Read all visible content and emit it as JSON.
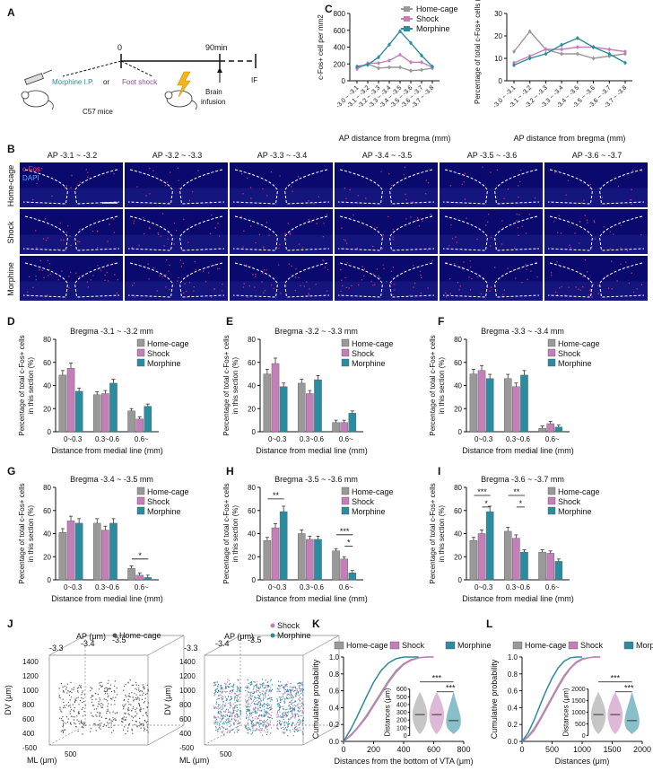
{
  "panel_letters": [
    "A",
    "B",
    "C",
    "D",
    "E",
    "F",
    "G",
    "H",
    "I",
    "J",
    "K",
    "L"
  ],
  "panelA": {
    "t0": "0",
    "t90": "90min",
    "morphine": "Morphine I.P.",
    "or": "or",
    "footshock": "Foot shock",
    "mice": "C57 mice",
    "brain1": "Brain",
    "brain2": "infusion",
    "if": "IF"
  },
  "colors": {
    "home": "#999999",
    "shock": "#c47fb8",
    "morphine": "#2a8c9e"
  },
  "groups": [
    "Home-cage",
    "Shock",
    "Morphine"
  ],
  "panelB": {
    "sections": [
      "AP -3.1 ~ -3.2",
      "AP -3.2 ~ -3.3",
      "AP -3.3 ~ -3.4",
      "AP -3.4 ~ -3.5",
      "AP -3.5 ~ -3.6",
      "AP -3.6 ~ -3.7"
    ],
    "rows": [
      "Home-cage",
      "Shock",
      "Morphine"
    ],
    "stain1": "c-Fos",
    "stain2": "DAPI"
  },
  "chart_data": [
    {
      "id": "C1",
      "type": "line",
      "ylabel": "c-Fos+ cell per mm2",
      "xlabel": "AP distance from bregma (mm)",
      "yticks": [
        "0",
        "200",
        "400",
        "600",
        "800"
      ],
      "ylim": [
        0,
        800
      ],
      "categories": [
        "-3.0 ~ -3.1",
        "-3.1 ~ -3.2",
        "-3.2 ~ -3.3",
        "-3.3 ~ -3.4",
        "-3.4 ~ -3.5",
        "-3.5 ~ -3.6",
        "-3.6 ~ -3.7",
        "-3.7 ~ -3.8"
      ],
      "series": [
        {
          "name": "Home-cage",
          "values": [
            150,
            200,
            150,
            160,
            160,
            120,
            130,
            150
          ]
        },
        {
          "name": "Shock",
          "values": [
            140,
            210,
            210,
            240,
            310,
            220,
            220,
            160
          ]
        },
        {
          "name": "Morphine",
          "values": [
            170,
            190,
            280,
            430,
            590,
            450,
            300,
            170
          ]
        }
      ]
    },
    {
      "id": "C2",
      "type": "line",
      "ylabel": "Percentage of total c-Fos+ cells (%)",
      "xlabel": "AP distance from bregma (mm)",
      "yticks": [
        "0",
        "10",
        "20",
        "30"
      ],
      "ylim": [
        0,
        30
      ],
      "categories": [
        "-3.0 ~ -3.1",
        "-3.1 ~ -3.2",
        "-3.2 ~ -3.3",
        "-3.3 ~ -3.4",
        "-3.4 ~ -3.5",
        "-3.5 ~ -3.6",
        "-3.6 ~ -3.7",
        "-3.7 ~ -3.8"
      ],
      "series": [
        {
          "name": "Home-cage",
          "values": [
            13,
            22,
            14,
            12,
            12,
            10,
            11,
            12
          ]
        },
        {
          "name": "Shock",
          "values": [
            8,
            11,
            14,
            14,
            15,
            15,
            14,
            13
          ]
        },
        {
          "name": "Morphine",
          "values": [
            7,
            10,
            12,
            16,
            19,
            15,
            12,
            8
          ]
        }
      ]
    },
    {
      "id": "D",
      "type": "bar",
      "title": "Bregma -3.1 ~ -3.2 mm",
      "ylim": [
        0,
        80
      ],
      "yticks": [
        "0",
        "20",
        "40",
        "60",
        "80"
      ],
      "ylabel": "Percentage of total c-Fos+ cells in this section (%)",
      "xlabel": "Distance from medial line (mm)",
      "categories": [
        "0~0.3",
        "0.3~0.6",
        "0.6~"
      ],
      "series": [
        {
          "name": "Home-cage",
          "values": [
            49,
            32,
            18
          ]
        },
        {
          "name": "Shock",
          "values": [
            55,
            33,
            11
          ]
        },
        {
          "name": "Morphine",
          "values": [
            35,
            42,
            22
          ]
        }
      ],
      "sig": []
    },
    {
      "id": "E",
      "type": "bar",
      "title": "Bregma -3.2 ~ -3.3 mm",
      "ylim": [
        0,
        80
      ],
      "yticks": [
        "0",
        "20",
        "40",
        "60",
        "80"
      ],
      "ylabel": "Percentage of total c-Fos+ cells in this section (%)",
      "xlabel": "Distance from medial line (mm)",
      "categories": [
        "0~0.3",
        "0.3~0.6",
        "0.6~"
      ],
      "series": [
        {
          "name": "Home-cage",
          "values": [
            50,
            42,
            8
          ]
        },
        {
          "name": "Shock",
          "values": [
            59,
            33,
            8
          ]
        },
        {
          "name": "Morphine",
          "values": [
            39,
            45,
            16
          ]
        }
      ],
      "sig": []
    },
    {
      "id": "F",
      "type": "bar",
      "title": "Bregma -3.3 ~ -3.4 mm",
      "ylim": [
        0,
        80
      ],
      "yticks": [
        "0",
        "20",
        "40",
        "60",
        "80"
      ],
      "ylabel": "Percentage of total c-Fos+ cells in this section (%)",
      "xlabel": "Distance from medial line (mm)",
      "categories": [
        "0~0.3",
        "0.3~0.6",
        "0.6~"
      ],
      "series": [
        {
          "name": "Home-cage",
          "values": [
            50,
            46,
            3
          ]
        },
        {
          "name": "Shock",
          "values": [
            53,
            39,
            7
          ]
        },
        {
          "name": "Morphine",
          "values": [
            46,
            49,
            4
          ]
        }
      ],
      "sig": []
    },
    {
      "id": "G",
      "type": "bar",
      "title": "Bregma -3.4 ~ -3.5 mm",
      "ylim": [
        0,
        80
      ],
      "yticks": [
        "0",
        "20",
        "40",
        "60",
        "80"
      ],
      "ylabel": "Percentage of total c-Fos+ cells in this section (%)",
      "xlabel": "Distance from medial line (mm)",
      "categories": [
        "0~0.3",
        "0.3~0.6",
        "0.6~"
      ],
      "series": [
        {
          "name": "Home-cage",
          "values": [
            41,
            49,
            10
          ]
        },
        {
          "name": "Shock",
          "values": [
            51,
            43,
            4
          ]
        },
        {
          "name": "Morphine",
          "values": [
            49,
            49,
            2
          ]
        }
      ],
      "sig": [
        {
          "cat": 2,
          "a": 0,
          "b": 2,
          "label": "*",
          "y": 18
        }
      ]
    },
    {
      "id": "H",
      "type": "bar",
      "title": "Bregma -3.5 ~ -3.6 mm",
      "ylim": [
        0,
        80
      ],
      "yticks": [
        "0",
        "20",
        "40",
        "60",
        "80"
      ],
      "ylabel": "Percentage of total c-Fos+ cells in this section (%)",
      "xlabel": "Distance from medial line (mm)",
      "categories": [
        "0~0.3",
        "0.3~0.6",
        "0.6~"
      ],
      "series": [
        {
          "name": "Home-cage",
          "values": [
            34,
            40,
            25
          ]
        },
        {
          "name": "Shock",
          "values": [
            45,
            35,
            18
          ]
        },
        {
          "name": "Morphine",
          "values": [
            59,
            35,
            6
          ]
        }
      ],
      "sig": [
        {
          "cat": 0,
          "a": 0,
          "b": 2,
          "label": "**",
          "y": 70
        },
        {
          "cat": 2,
          "a": 0,
          "b": 2,
          "label": "***",
          "y": 39
        },
        {
          "cat": 2,
          "a": 1,
          "b": 2,
          "label": "*",
          "y": 29
        }
      ]
    },
    {
      "id": "I",
      "type": "bar",
      "title": "Bregma -3.6 ~ -3.7 mm",
      "ylim": [
        0,
        80
      ],
      "yticks": [
        "0",
        "20",
        "40",
        "60",
        "80"
      ],
      "ylabel": "Percentage of total c-Fos+ cells in this section (%)",
      "xlabel": "Distance from medial line (mm)",
      "categories": [
        "0~0.3",
        "0.3~0.6",
        "0.6~"
      ],
      "series": [
        {
          "name": "Home-cage",
          "values": [
            34,
            42,
            24
          ]
        },
        {
          "name": "Shock",
          "values": [
            40,
            36,
            23
          ]
        },
        {
          "name": "Morphine",
          "values": [
            59,
            24,
            16
          ]
        }
      ],
      "sig": [
        {
          "cat": 0,
          "a": 0,
          "b": 2,
          "label": "***",
          "y": 73
        },
        {
          "cat": 0,
          "a": 1,
          "b": 2,
          "label": "*",
          "y": 63
        },
        {
          "cat": 1,
          "a": 0,
          "b": 2,
          "label": "**",
          "y": 73
        },
        {
          "cat": 1,
          "a": 1,
          "b": 2,
          "label": "*",
          "y": 63
        }
      ]
    },
    {
      "id": "K",
      "type": "line",
      "xlabel": "Distances from the bottom of VTA (μm)",
      "ylabel": "Cumulative probability",
      "xticks": [
        "0",
        "200",
        "400",
        "600",
        "800"
      ],
      "yticks": [
        "0.0",
        "0.2",
        "0.4",
        "0.6",
        "0.8",
        "1.0"
      ],
      "xlim": [
        0,
        800
      ],
      "ylim": [
        0,
        1
      ],
      "series": [
        {
          "name": "Home-cage",
          "x": [
            0,
            50,
            100,
            150,
            200,
            250,
            300,
            350,
            400,
            450,
            500,
            550,
            600
          ],
          "y": [
            0,
            0.08,
            0.18,
            0.3,
            0.44,
            0.58,
            0.72,
            0.84,
            0.92,
            0.97,
            0.99,
            1,
            1
          ]
        },
        {
          "name": "Shock",
          "x": [
            0,
            50,
            100,
            150,
            200,
            250,
            300,
            350,
            400,
            450,
            500,
            550,
            600
          ],
          "y": [
            0,
            0.07,
            0.17,
            0.28,
            0.42,
            0.56,
            0.7,
            0.82,
            0.91,
            0.96,
            0.99,
            1,
            1
          ]
        },
        {
          "name": "Morphine",
          "x": [
            0,
            50,
            100,
            150,
            200,
            250,
            300,
            350,
            400,
            450,
            500
          ],
          "y": [
            0,
            0.15,
            0.33,
            0.52,
            0.7,
            0.84,
            0.93,
            0.98,
            1,
            1,
            1
          ]
        }
      ],
      "inset": {
        "ylabel": "Distances (μm)",
        "yticks": [
          "0",
          "100",
          "200",
          "300",
          "400",
          "500",
          "600"
        ],
        "ylim": [
          0,
          600
        ],
        "sig": [
          "***",
          "***"
        ]
      }
    },
    {
      "id": "L",
      "type": "line",
      "xlabel": "Distances (μm)",
      "ylabel": "Cumulative probability",
      "xticks": [
        "0",
        "500",
        "1000",
        "1500",
        "2000"
      ],
      "yticks": [
        "0.0",
        "0.2",
        "0.4",
        "0.6",
        "0.8",
        "1.0"
      ],
      "xlim": [
        0,
        2000
      ],
      "ylim": [
        0,
        1
      ],
      "series": [
        {
          "name": "Home-cage",
          "x": [
            0,
            100,
            200,
            300,
            400,
            500,
            600,
            700,
            800,
            900,
            1000,
            1100,
            1200,
            1300
          ],
          "y": [
            0,
            0.06,
            0.15,
            0.27,
            0.4,
            0.53,
            0.66,
            0.78,
            0.87,
            0.94,
            0.98,
            0.99,
            1,
            1
          ]
        },
        {
          "name": "Shock",
          "x": [
            0,
            100,
            200,
            300,
            400,
            500,
            600,
            700,
            800,
            900,
            1000,
            1100,
            1200,
            1300
          ],
          "y": [
            0,
            0.05,
            0.13,
            0.25,
            0.38,
            0.51,
            0.64,
            0.76,
            0.86,
            0.93,
            0.97,
            0.99,
            1,
            1
          ]
        },
        {
          "name": "Morphine",
          "x": [
            0,
            100,
            200,
            300,
            400,
            500,
            600,
            700,
            800,
            900,
            1000
          ],
          "y": [
            0,
            0.1,
            0.25,
            0.43,
            0.6,
            0.75,
            0.87,
            0.95,
            0.99,
            1,
            1
          ]
        }
      ],
      "inset": {
        "ylabel": "Distances (μm)",
        "yticks": [
          "0",
          "500",
          "1000",
          "1500",
          "2000"
        ],
        "ylim": [
          0,
          2000
        ],
        "sig": [
          "***",
          "***"
        ]
      }
    }
  ],
  "panelJ": {
    "ap_label": "AP (μm)",
    "ap_ticks": [
      "-3.3",
      "-3.4",
      "-3.5"
    ],
    "dv_label": "DV (μm)",
    "dv_ticks": [
      "1400",
      "1200",
      "1000",
      "800",
      "600",
      "400",
      "-500"
    ],
    "ml_label": "ML (μm)",
    "ml_tick": "500",
    "left_legend": "Home-cage",
    "right_legend": [
      "Shock",
      "Morphine"
    ]
  }
}
